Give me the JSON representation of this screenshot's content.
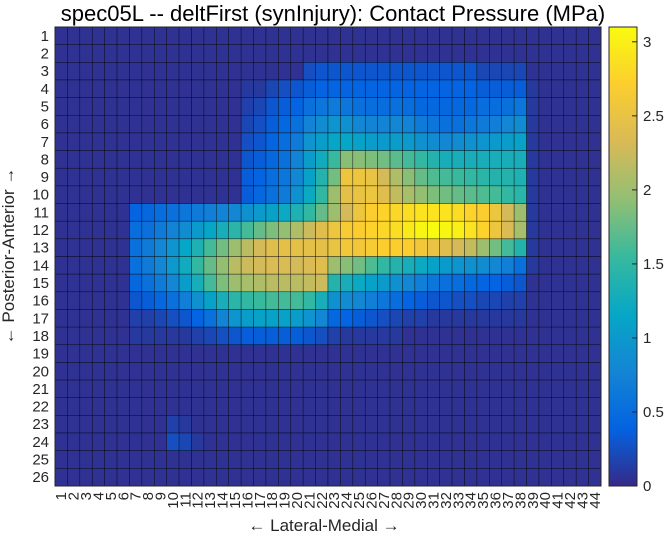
{
  "chart_data": {
    "type": "heatmap",
    "title": "spec05L -- deltFirst (synInjury): Contact Pressure (MPa)",
    "xlabel": "← Lateral-Medial →",
    "ylabel": "← Posterior-Anterior →",
    "x_categories": [
      "1",
      "2",
      "3",
      "4",
      "5",
      "6",
      "7",
      "8",
      "9",
      "10",
      "11",
      "12",
      "13",
      "14",
      "15",
      "16",
      "17",
      "18",
      "19",
      "20",
      "21",
      "22",
      "23",
      "24",
      "25",
      "26",
      "27",
      "28",
      "29",
      "30",
      "31",
      "32",
      "33",
      "34",
      "35",
      "36",
      "37",
      "38",
      "39",
      "40",
      "41",
      "42",
      "43",
      "44"
    ],
    "y_categories": [
      "1",
      "2",
      "3",
      "4",
      "5",
      "6",
      "7",
      "8",
      "9",
      "10",
      "11",
      "12",
      "13",
      "14",
      "15",
      "16",
      "17",
      "18",
      "19",
      "20",
      "21",
      "22",
      "23",
      "24",
      "25",
      "26"
    ],
    "colorbar": {
      "min": 0,
      "max": 3.1,
      "ticks": [
        0,
        0.5,
        1,
        1.5,
        2,
        2.5,
        3
      ],
      "tick_labels": [
        "0",
        "0.5",
        "1",
        "1.5",
        "2",
        "2.5",
        "3"
      ]
    },
    "colormap": "parula",
    "grid": true,
    "values": [
      [
        0.05,
        0.05,
        0.05,
        0.05,
        0.05,
        0.05,
        0.05,
        0.05,
        0.05,
        0.05,
        0.05,
        0.05,
        0.05,
        0.05,
        0.05,
        0.05,
        0.05,
        0.05,
        0.05,
        0.05,
        0.05,
        0.05,
        0.05,
        0.05,
        0.05,
        0.05,
        0.05,
        0.05,
        0.05,
        0.05,
        0.05,
        0.05,
        0.05,
        0.05,
        0.05,
        0.05,
        0.05,
        0.05,
        0.05,
        0.05,
        0.05,
        0.05,
        0.05,
        0.05
      ],
      [
        0.05,
        0.05,
        0.05,
        0.05,
        0.05,
        0.05,
        0.05,
        0.05,
        0.05,
        0.05,
        0.05,
        0.05,
        0.05,
        0.05,
        0.05,
        0.05,
        0.05,
        0.05,
        0.05,
        0.05,
        0.05,
        0.05,
        0.05,
        0.05,
        0.05,
        0.05,
        0.05,
        0.05,
        0.05,
        0.05,
        0.05,
        0.05,
        0.05,
        0.05,
        0.05,
        0.05,
        0.05,
        0.05,
        0.05,
        0.05,
        0.05,
        0.05,
        0.05,
        0.05
      ],
      [
        0.05,
        0.05,
        0.05,
        0.05,
        0.05,
        0.05,
        0.05,
        0.05,
        0.05,
        0.05,
        0.05,
        0.05,
        0.05,
        0.05,
        0.05,
        0.05,
        0.05,
        0.05,
        0.05,
        0.05,
        0.25,
        0.3,
        0.3,
        0.3,
        0.3,
        0.3,
        0.3,
        0.3,
        0.3,
        0.3,
        0.3,
        0.3,
        0.3,
        0.3,
        0.2,
        0.2,
        0.2,
        0.2,
        0.05,
        0.05,
        0.05,
        0.05,
        0.05,
        0.05
      ],
      [
        0.05,
        0.05,
        0.05,
        0.05,
        0.05,
        0.05,
        0.05,
        0.05,
        0.05,
        0.05,
        0.05,
        0.05,
        0.05,
        0.05,
        0.05,
        0.1,
        0.1,
        0.2,
        0.25,
        0.3,
        0.35,
        0.4,
        0.4,
        0.4,
        0.4,
        0.4,
        0.4,
        0.4,
        0.4,
        0.4,
        0.4,
        0.4,
        0.4,
        0.4,
        0.35,
        0.35,
        0.35,
        0.35,
        0.1,
        0.05,
        0.05,
        0.05,
        0.05,
        0.05
      ],
      [
        0.05,
        0.05,
        0.05,
        0.05,
        0.05,
        0.05,
        0.05,
        0.05,
        0.05,
        0.05,
        0.05,
        0.05,
        0.05,
        0.05,
        0.05,
        0.15,
        0.2,
        0.3,
        0.35,
        0.4,
        0.55,
        0.6,
        0.65,
        0.6,
        0.55,
        0.5,
        0.5,
        0.55,
        0.5,
        0.45,
        0.45,
        0.45,
        0.45,
        0.45,
        0.5,
        0.5,
        0.55,
        0.6,
        0.1,
        0.05,
        0.05,
        0.05,
        0.05,
        0.05
      ],
      [
        0.05,
        0.05,
        0.05,
        0.05,
        0.05,
        0.05,
        0.05,
        0.05,
        0.05,
        0.05,
        0.05,
        0.05,
        0.05,
        0.05,
        0.05,
        0.2,
        0.25,
        0.35,
        0.45,
        0.55,
        0.75,
        0.85,
        0.95,
        0.9,
        0.8,
        0.75,
        0.75,
        0.8,
        0.75,
        0.65,
        0.6,
        0.55,
        0.55,
        0.6,
        0.65,
        0.7,
        0.8,
        0.85,
        0.1,
        0.05,
        0.05,
        0.05,
        0.05,
        0.05
      ],
      [
        0.05,
        0.05,
        0.05,
        0.05,
        0.05,
        0.05,
        0.05,
        0.05,
        0.05,
        0.05,
        0.05,
        0.05,
        0.05,
        0.05,
        0.05,
        0.25,
        0.3,
        0.4,
        0.5,
        0.65,
        0.95,
        1.05,
        1.15,
        1.15,
        1.1,
        1.05,
        1.0,
        1.05,
        1.0,
        0.9,
        0.85,
        0.8,
        0.85,
        0.9,
        0.95,
        1.0,
        1.05,
        1.1,
        0.1,
        0.05,
        0.05,
        0.05,
        0.05,
        0.05
      ],
      [
        0.05,
        0.05,
        0.05,
        0.05,
        0.05,
        0.05,
        0.05,
        0.05,
        0.05,
        0.05,
        0.05,
        0.05,
        0.05,
        0.05,
        0.05,
        0.3,
        0.35,
        0.45,
        0.55,
        0.75,
        1.05,
        1.25,
        1.55,
        1.9,
        1.9,
        1.85,
        1.8,
        1.7,
        1.6,
        1.5,
        1.4,
        1.3,
        1.3,
        1.3,
        1.3,
        1.3,
        1.3,
        1.3,
        0.1,
        0.05,
        0.05,
        0.05,
        0.05,
        0.05
      ],
      [
        0.05,
        0.05,
        0.05,
        0.05,
        0.05,
        0.05,
        0.05,
        0.05,
        0.05,
        0.05,
        0.05,
        0.05,
        0.05,
        0.05,
        0.05,
        0.35,
        0.4,
        0.5,
        0.6,
        0.8,
        1.1,
        1.4,
        1.8,
        2.55,
        2.55,
        2.5,
        2.3,
        2.1,
        1.9,
        1.75,
        1.65,
        1.6,
        1.55,
        1.5,
        1.45,
        1.4,
        1.4,
        1.35,
        0.1,
        0.05,
        0.05,
        0.05,
        0.05,
        0.05
      ],
      [
        0.05,
        0.05,
        0.05,
        0.05,
        0.05,
        0.05,
        0.05,
        0.05,
        0.05,
        0.05,
        0.05,
        0.05,
        0.05,
        0.05,
        0.05,
        0.35,
        0.45,
        0.55,
        0.65,
        0.9,
        1.2,
        1.5,
        2.0,
        2.45,
        2.5,
        2.55,
        2.4,
        2.2,
        2.05,
        1.95,
        1.85,
        1.8,
        1.75,
        1.7,
        1.65,
        1.6,
        1.5,
        1.45,
        0.1,
        0.05,
        0.05,
        0.05,
        0.05,
        0.05
      ],
      [
        0.05,
        0.05,
        0.05,
        0.05,
        0.05,
        0.05,
        0.4,
        0.45,
        0.5,
        0.55,
        0.6,
        0.65,
        0.7,
        0.75,
        0.8,
        0.9,
        1.0,
        1.1,
        1.2,
        1.35,
        1.5,
        1.75,
        2.0,
        2.3,
        2.55,
        2.7,
        2.75,
        2.8,
        2.85,
        2.9,
        2.9,
        2.9,
        2.85,
        2.75,
        2.7,
        2.55,
        2.3,
        2.0,
        0.1,
        0.05,
        0.05,
        0.05,
        0.05,
        0.05
      ],
      [
        0.05,
        0.05,
        0.05,
        0.05,
        0.05,
        0.05,
        0.5,
        0.55,
        0.65,
        0.75,
        0.85,
        1.0,
        1.15,
        1.3,
        1.45,
        1.6,
        1.75,
        1.85,
        1.95,
        2.1,
        2.25,
        2.4,
        2.55,
        2.65,
        2.7,
        2.75,
        2.8,
        2.85,
        2.95,
        3.05,
        3.1,
        3.05,
        3.0,
        2.9,
        2.75,
        2.55,
        2.35,
        2.05,
        0.1,
        0.05,
        0.05,
        0.05,
        0.05,
        0.05
      ],
      [
        0.05,
        0.05,
        0.05,
        0.05,
        0.05,
        0.05,
        0.55,
        0.65,
        0.8,
        0.95,
        1.15,
        1.35,
        1.6,
        1.8,
        2.0,
        2.15,
        2.3,
        2.4,
        2.45,
        2.45,
        2.45,
        2.45,
        2.5,
        2.6,
        2.6,
        2.65,
        2.7,
        2.7,
        2.7,
        2.6,
        2.5,
        2.4,
        2.3,
        2.2,
        2.0,
        1.8,
        1.6,
        1.4,
        0.1,
        0.05,
        0.05,
        0.05,
        0.05,
        0.05
      ],
      [
        0.05,
        0.05,
        0.05,
        0.05,
        0.05,
        0.05,
        0.55,
        0.65,
        0.8,
        1.0,
        1.25,
        1.5,
        1.75,
        1.95,
        2.15,
        2.25,
        2.3,
        2.35,
        2.35,
        2.3,
        2.35,
        2.4,
        2.0,
        1.9,
        1.8,
        1.65,
        1.5,
        1.4,
        1.3,
        1.2,
        1.1,
        1.0,
        0.95,
        0.9,
        0.85,
        0.8,
        0.7,
        0.55,
        0.1,
        0.05,
        0.05,
        0.05,
        0.05,
        0.05
      ],
      [
        0.05,
        0.05,
        0.05,
        0.05,
        0.05,
        0.05,
        0.45,
        0.55,
        0.65,
        0.8,
        1.05,
        1.3,
        1.6,
        1.85,
        2.0,
        2.05,
        2.1,
        2.15,
        2.15,
        2.15,
        2.2,
        2.25,
        1.4,
        1.3,
        1.2,
        1.1,
        1.0,
        0.9,
        0.8,
        0.7,
        0.6,
        0.55,
        0.5,
        0.45,
        0.4,
        0.4,
        0.35,
        0.3,
        0.05,
        0.05,
        0.05,
        0.05,
        0.05,
        0.05
      ],
      [
        0.05,
        0.05,
        0.05,
        0.05,
        0.05,
        0.05,
        0.3,
        0.35,
        0.45,
        0.55,
        0.7,
        0.9,
        1.1,
        1.3,
        1.45,
        1.5,
        1.55,
        1.6,
        1.6,
        1.6,
        1.5,
        1.3,
        0.9,
        0.85,
        0.8,
        0.7,
        0.6,
        0.5,
        0.4,
        0.35,
        0.3,
        0.3,
        0.25,
        0.25,
        0.2,
        0.2,
        0.15,
        0.15,
        0.05,
        0.05,
        0.05,
        0.05,
        0.05,
        0.05
      ],
      [
        0.05,
        0.05,
        0.05,
        0.05,
        0.05,
        0.05,
        0.15,
        0.15,
        0.2,
        0.25,
        0.3,
        0.4,
        0.55,
        0.75,
        0.95,
        1.05,
        1.1,
        1.1,
        1.1,
        1.05,
        0.95,
        0.8,
        0.45,
        0.4,
        0.35,
        0.3,
        0.25,
        0.2,
        0.15,
        0.15,
        0.1,
        0.1,
        0.1,
        0.1,
        0.1,
        0.1,
        0.1,
        0.1,
        0.05,
        0.05,
        0.05,
        0.05,
        0.05,
        0.05
      ],
      [
        0.05,
        0.05,
        0.05,
        0.05,
        0.05,
        0.05,
        0.1,
        0.1,
        0.1,
        0.1,
        0.1,
        0.15,
        0.2,
        0.25,
        0.3,
        0.35,
        0.35,
        0.35,
        0.35,
        0.35,
        0.3,
        0.25,
        0.15,
        0.1,
        0.1,
        0.1,
        0.1,
        0.1,
        0.05,
        0.05,
        0.05,
        0.05,
        0.05,
        0.05,
        0.05,
        0.05,
        0.05,
        0.05,
        0.05,
        0.05,
        0.05,
        0.05,
        0.05,
        0.05
      ],
      [
        0.05,
        0.05,
        0.05,
        0.05,
        0.05,
        0.05,
        0.05,
        0.05,
        0.05,
        0.05,
        0.05,
        0.05,
        0.05,
        0.05,
        0.05,
        0.05,
        0.05,
        0.05,
        0.05,
        0.05,
        0.05,
        0.05,
        0.05,
        0.05,
        0.05,
        0.05,
        0.05,
        0.05,
        0.05,
        0.05,
        0.05,
        0.05,
        0.05,
        0.05,
        0.05,
        0.05,
        0.05,
        0.05,
        0.05,
        0.05,
        0.05,
        0.05,
        0.05,
        0.05
      ],
      [
        0.05,
        0.05,
        0.05,
        0.05,
        0.05,
        0.05,
        0.05,
        0.05,
        0.05,
        0.05,
        0.05,
        0.05,
        0.05,
        0.05,
        0.05,
        0.05,
        0.05,
        0.05,
        0.05,
        0.05,
        0.05,
        0.05,
        0.05,
        0.05,
        0.05,
        0.05,
        0.05,
        0.05,
        0.05,
        0.05,
        0.05,
        0.05,
        0.05,
        0.05,
        0.05,
        0.05,
        0.05,
        0.05,
        0.05,
        0.05,
        0.05,
        0.05,
        0.05,
        0.05
      ],
      [
        0.05,
        0.05,
        0.05,
        0.05,
        0.05,
        0.05,
        0.05,
        0.05,
        0.05,
        0.05,
        0.05,
        0.05,
        0.05,
        0.05,
        0.05,
        0.05,
        0.05,
        0.05,
        0.05,
        0.05,
        0.05,
        0.05,
        0.05,
        0.05,
        0.05,
        0.05,
        0.05,
        0.05,
        0.05,
        0.05,
        0.05,
        0.05,
        0.05,
        0.05,
        0.05,
        0.05,
        0.05,
        0.05,
        0.05,
        0.05,
        0.05,
        0.05,
        0.05,
        0.05
      ],
      [
        0.05,
        0.05,
        0.05,
        0.05,
        0.05,
        0.05,
        0.05,
        0.05,
        0.05,
        0.05,
        0.05,
        0.05,
        0.05,
        0.05,
        0.05,
        0.05,
        0.05,
        0.05,
        0.05,
        0.05,
        0.05,
        0.05,
        0.05,
        0.05,
        0.05,
        0.05,
        0.05,
        0.05,
        0.05,
        0.05,
        0.05,
        0.05,
        0.05,
        0.05,
        0.05,
        0.05,
        0.05,
        0.05,
        0.05,
        0.05,
        0.05,
        0.05,
        0.05,
        0.05
      ],
      [
        0.05,
        0.05,
        0.05,
        0.05,
        0.05,
        0.05,
        0.05,
        0.05,
        0.05,
        0.15,
        0.1,
        0.05,
        0.05,
        0.05,
        0.05,
        0.05,
        0.05,
        0.05,
        0.05,
        0.05,
        0.05,
        0.05,
        0.05,
        0.05,
        0.05,
        0.05,
        0.05,
        0.05,
        0.05,
        0.05,
        0.05,
        0.05,
        0.05,
        0.05,
        0.05,
        0.05,
        0.05,
        0.05,
        0.05,
        0.05,
        0.05,
        0.05,
        0.05,
        0.05
      ],
      [
        0.05,
        0.05,
        0.05,
        0.05,
        0.05,
        0.05,
        0.05,
        0.05,
        0.05,
        0.25,
        0.2,
        0.1,
        0.05,
        0.05,
        0.05,
        0.05,
        0.05,
        0.05,
        0.05,
        0.05,
        0.05,
        0.05,
        0.05,
        0.05,
        0.05,
        0.05,
        0.05,
        0.05,
        0.05,
        0.05,
        0.05,
        0.05,
        0.05,
        0.05,
        0.05,
        0.05,
        0.05,
        0.05,
        0.05,
        0.05,
        0.05,
        0.05,
        0.05,
        0.05
      ],
      [
        0.05,
        0.05,
        0.05,
        0.05,
        0.05,
        0.05,
        0.05,
        0.05,
        0.05,
        0.05,
        0.05,
        0.05,
        0.05,
        0.05,
        0.05,
        0.05,
        0.05,
        0.05,
        0.05,
        0.05,
        0.05,
        0.05,
        0.05,
        0.05,
        0.05,
        0.05,
        0.05,
        0.05,
        0.05,
        0.05,
        0.05,
        0.05,
        0.05,
        0.05,
        0.05,
        0.05,
        0.05,
        0.05,
        0.05,
        0.05,
        0.05,
        0.05,
        0.05,
        0.05
      ],
      [
        0.05,
        0.05,
        0.05,
        0.05,
        0.05,
        0.05,
        0.05,
        0.05,
        0.05,
        0.05,
        0.05,
        0.05,
        0.05,
        0.05,
        0.05,
        0.05,
        0.05,
        0.05,
        0.05,
        0.05,
        0.05,
        0.05,
        0.05,
        0.05,
        0.05,
        0.05,
        0.05,
        0.05,
        0.05,
        0.05,
        0.05,
        0.05,
        0.05,
        0.05,
        0.05,
        0.05,
        0.05,
        0.05,
        0.05,
        0.05,
        0.05,
        0.05,
        0.05,
        0.05
      ]
    ]
  }
}
